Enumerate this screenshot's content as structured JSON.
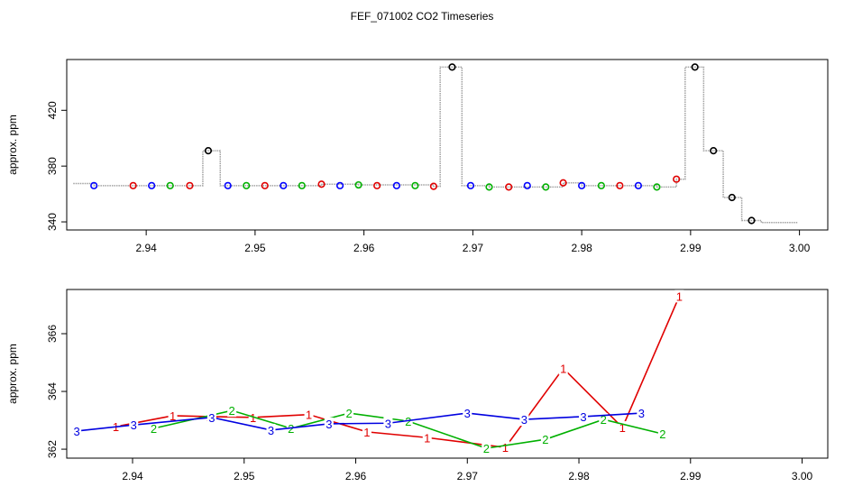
{
  "title": "FEF_071002  CO2 Timeseries",
  "chart_data": [
    {
      "type": "scatter",
      "y_label": "approx. ppm",
      "xlim": [
        2.9327,
        3.0026
      ],
      "ylim": [
        334.2,
        456.4
      ],
      "xticks": [
        2.94,
        2.95,
        2.96,
        2.97,
        2.98,
        2.99,
        {
          "value": 3,
          "label": "3.00"
        }
      ],
      "yticks": [
        340,
        380,
        420
      ],
      "trace": {
        "color": "#a0a0a0",
        "style": "step",
        "x": [
          2.9333,
          2.9352,
          2.9388,
          2.9405,
          2.9422,
          2.944,
          2.9452,
          2.9468,
          2.9509,
          2.9561,
          2.9595,
          2.9664,
          2.967,
          2.969,
          2.9715,
          2.9767,
          2.9783,
          2.98,
          2.9869,
          2.9887,
          2.9895,
          2.9912,
          2.993,
          2.9947,
          2.9965,
          2.9998
        ],
        "values": [
          367.5,
          366,
          366,
          366,
          366,
          366,
          391,
          366,
          366,
          367,
          366.5,
          365.5,
          451,
          366,
          365,
          365,
          368,
          366,
          365,
          370.6,
          451,
          391,
          357.5,
          341,
          339.5,
          339.5
        ]
      },
      "series": [
        {
          "color": "#0000ff",
          "x": [
            2.9352,
            2.9405,
            2.9475,
            2.9526,
            2.9578,
            2.963,
            2.9698,
            2.975,
            2.98,
            2.9852
          ],
          "values": [
            366,
            366,
            366,
            366,
            366,
            366,
            366,
            366,
            366,
            366
          ]
        },
        {
          "color": "#e00000",
          "x": [
            2.9388,
            2.944,
            2.9509,
            2.9561,
            2.9612,
            2.9664,
            2.9733,
            2.9783,
            2.9835,
            2.9887
          ],
          "values": [
            366,
            366,
            366,
            367,
            366,
            365.5,
            365,
            368,
            366,
            370.6
          ]
        },
        {
          "color": "#00b000",
          "x": [
            2.9422,
            2.9492,
            2.9543,
            2.9595,
            2.9647,
            2.9715,
            2.9767,
            2.9818,
            2.9869
          ],
          "values": [
            366,
            366,
            366,
            366.5,
            366,
            365,
            365,
            366,
            365
          ]
        },
        {
          "color": "#000000",
          "x": [
            2.9457,
            2.9681,
            2.9904,
            2.9921,
            2.9938,
            2.9956
          ],
          "values": [
            391,
            451,
            451,
            391,
            357.5,
            341
          ]
        }
      ]
    },
    {
      "type": "line",
      "y_label": "approx. ppm",
      "xlim": [
        2.9341,
        3.0023
      ],
      "ylim": [
        361.69,
        367.53
      ],
      "xticks": [
        2.94,
        2.95,
        2.96,
        2.97,
        2.98,
        2.99,
        {
          "value": 3,
          "label": "3.00"
        }
      ],
      "yticks": [
        362,
        364,
        366
      ],
      "series": [
        {
          "marker": "1",
          "color": "#e00000",
          "x": [
            2.9385,
            2.9436,
            2.9469,
            2.9508,
            2.9558,
            2.961,
            2.9664,
            2.9734,
            2.9786,
            2.9839,
            2.989
          ],
          "values": [
            362.78,
            363.16,
            363.13,
            363.1,
            363.2,
            362.6,
            362.4,
            362.06,
            364.8,
            362.75,
            367.3
          ]
        },
        {
          "marker": "2",
          "color": "#00b000",
          "x": [
            2.9419,
            2.9489,
            2.9542,
            2.9594,
            2.9647,
            2.9717,
            2.977,
            2.9822,
            2.9875
          ],
          "values": [
            362.72,
            363.34,
            362.72,
            363.25,
            362.97,
            362.03,
            362.34,
            363.03,
            362.53
          ]
        },
        {
          "marker": "3",
          "color": "#0000e0",
          "x": [
            2.935,
            2.9401,
            2.9471,
            2.9524,
            2.9576,
            2.9629,
            2.97,
            2.9751,
            2.9804,
            2.9856
          ],
          "values": [
            362.63,
            362.84,
            363.1,
            362.66,
            362.88,
            362.9,
            363.25,
            363.03,
            363.13,
            363.25
          ]
        }
      ]
    }
  ]
}
